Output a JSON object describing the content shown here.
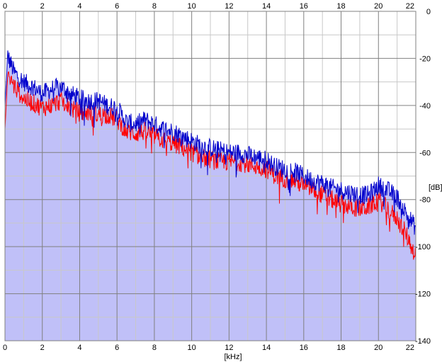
{
  "chart_data": {
    "type": "area",
    "xlabel": "[kHz]",
    "ylabel": "[dB]",
    "xlim": [
      0,
      22
    ],
    "ylim": [
      -140,
      0
    ],
    "x_ticks": [
      0,
      2,
      4,
      6,
      8,
      10,
      12,
      14,
      16,
      18,
      20,
      22
    ],
    "y_ticks": [
      0,
      -20,
      -40,
      -60,
      -80,
      -100,
      -120,
      -140
    ],
    "y_tick_labels": [
      "0",
      "-20",
      "-40",
      "-60",
      "-80",
      "-100",
      "-120",
      "-140"
    ],
    "grid": true,
    "colors": {
      "fill": "#c0c0f8",
      "series_blue": "#0000cc",
      "series_red": "#ff0000",
      "grid_major": "#808080",
      "grid_minor": "#c8c8c8",
      "background": "#ffffff"
    },
    "series": [
      {
        "color": "blue",
        "x": [
          0,
          0.15,
          0.5,
          1,
          1.5,
          2,
          2.5,
          3,
          3.5,
          4,
          4.5,
          5,
          5.5,
          6,
          6.5,
          7,
          7.5,
          8,
          8.5,
          9,
          9.5,
          10,
          10.5,
          11,
          11.5,
          12,
          12.5,
          13,
          13.5,
          14,
          14.5,
          15,
          15.5,
          16,
          16.5,
          17,
          17.5,
          18,
          18.5,
          19,
          19.5,
          20,
          20.5,
          21,
          21.5,
          22
        ],
        "y": [
          -40,
          -19,
          -26,
          -30,
          -32,
          -35,
          -33,
          -32,
          -35,
          -37,
          -38,
          -38,
          -40,
          -41,
          -47,
          -48,
          -46,
          -48,
          -50,
          -51,
          -53,
          -55,
          -57,
          -58,
          -59,
          -60,
          -60,
          -61,
          -62,
          -63,
          -66,
          -67,
          -68,
          -70,
          -72,
          -73,
          -75,
          -76,
          -77,
          -78,
          -78,
          -74,
          -76,
          -79,
          -86,
          -92
        ]
      },
      {
        "color": "red",
        "x": [
          0,
          0.15,
          0.5,
          1,
          1.5,
          2,
          2.5,
          3,
          3.5,
          4,
          4.5,
          5,
          5.5,
          6,
          6.5,
          7,
          7.5,
          8,
          8.5,
          9,
          9.5,
          10,
          10.5,
          11,
          11.5,
          12,
          12.5,
          13,
          13.5,
          14,
          14.5,
          15,
          15.5,
          16,
          16.5,
          17,
          17.5,
          18,
          18.5,
          19,
          19.5,
          20,
          20.5,
          21,
          21.5,
          22
        ],
        "y": [
          -50,
          -27,
          -32,
          -37,
          -39,
          -41,
          -40,
          -38,
          -41,
          -43,
          -43,
          -44,
          -44,
          -46,
          -51,
          -52,
          -51,
          -53,
          -55,
          -56,
          -58,
          -60,
          -62,
          -63,
          -64,
          -64,
          -64,
          -65,
          -66,
          -67,
          -70,
          -71,
          -72,
          -74,
          -76,
          -78,
          -80,
          -82,
          -83,
          -84,
          -83,
          -80,
          -84,
          -88,
          -95,
          -104
        ]
      }
    ]
  }
}
